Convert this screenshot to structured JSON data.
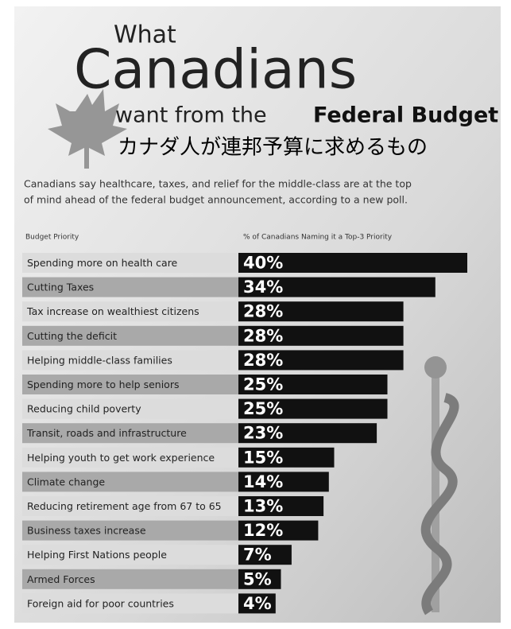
{
  "chart_data": {
    "type": "bar",
    "orientation": "horizontal",
    "title_small": "What",
    "title_big": "Canadians",
    "title_tail": "want from the",
    "title_bold": "Federal Budget",
    "subtitle": "カナダ人が連邦予算に求めるもの",
    "description": [
      "Canadians say healthcare, taxes, and relief for the middle-class are at the top",
      "of mind ahead of the federal budget announcement, according to a new poll."
    ],
    "category_header": "Budget Priority",
    "value_header": "% of Canadians Naming it a Top-3 Priority",
    "categories": [
      "Spending more on health care",
      "Cutting Taxes",
      "Tax increase on wealthiest citizens",
      "Cutting the deficit",
      "Helping middle-class families",
      "Spending more to help seniors",
      "Reducing child poverty",
      "Transit, roads and infrastructure",
      "Helping youth to get work experience",
      "Climate change",
      "Reducing retirement age from 67 to 65",
      "Business taxes increase",
      "Helping First Nations people",
      "Armed Forces",
      "Foreign aid for poor countries"
    ],
    "values": [
      40,
      34,
      28,
      28,
      28,
      25,
      25,
      23,
      15,
      14,
      13,
      12,
      7,
      5,
      4
    ],
    "value_labels": [
      "40%",
      "34%",
      "28%",
      "28%",
      "28%",
      "25%",
      "25%",
      "23%",
      "15%",
      "14%",
      "13%",
      "12%",
      "7%",
      "5%",
      "4%"
    ],
    "color": "#111111"
  }
}
